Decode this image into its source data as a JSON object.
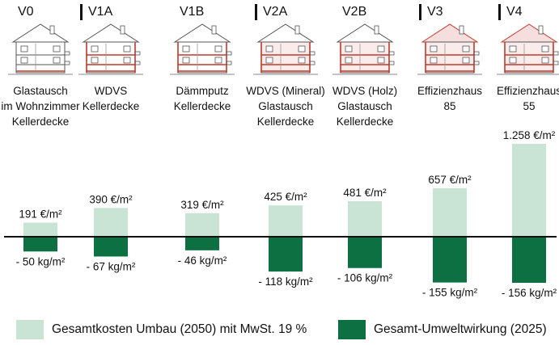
{
  "colors": {
    "cost": "#c9e4d5",
    "impact": "#0d7043",
    "axis": "#111111",
    "house_red": "#c0392b"
  },
  "variants": [
    {
      "code": "V0",
      "separator": false,
      "desc": [
        "Glastausch",
        "im Wohnzimmer",
        "Kellerdecke"
      ],
      "house": "house-icon-v0"
    },
    {
      "code": "V1A",
      "separator": true,
      "desc": [
        "WDVS",
        "Kellerdecke"
      ],
      "house": "house-icon-v1a"
    },
    {
      "code": "V1B",
      "separator": false,
      "desc": [
        "Dämmputz",
        "Kellerdecke"
      ],
      "house": "house-icon-v1b"
    },
    {
      "code": "V2A",
      "separator": true,
      "desc": [
        "WDVS (Mineral)",
        "Glastausch",
        "Kellerdecke"
      ],
      "house": "house-icon-v2a"
    },
    {
      "code": "V2B",
      "separator": false,
      "desc": [
        "WDVS (Holz)",
        "Glastausch",
        "Kellerdecke"
      ],
      "house": "house-icon-v2b"
    },
    {
      "code": "V3",
      "separator": true,
      "desc": [
        "Effizienzhaus",
        "85"
      ],
      "house": "house-icon-v3"
    },
    {
      "code": "V4",
      "separator": true,
      "desc": [
        "Effizienzhaus",
        "55"
      ],
      "house": "house-icon-v4"
    }
  ],
  "chart_data": {
    "type": "bar",
    "categories": [
      "V0",
      "V1A",
      "V1B",
      "V2A",
      "V2B",
      "V3",
      "V4"
    ],
    "series": [
      {
        "name": "Gesamtkosten Umbau (2050) mit MwSt. 19 %",
        "unit": "€/m²",
        "values": [
          191,
          390,
          319,
          425,
          481,
          657,
          1258
        ],
        "labels": [
          "191 €/m²",
          "390 €/m²",
          "319 €/m²",
          "425 €/m²",
          "481 €/m²",
          "657 €/m²",
          "1.258 €/m²"
        ]
      },
      {
        "name": "Gesamt-Umweltwirkung (2025)",
        "unit": "kg/m²",
        "values": [
          -50,
          -67,
          -46,
          -118,
          -106,
          -155,
          -156
        ],
        "labels": [
          "- 50 kg/m²",
          "- 67 kg/m²",
          "- 46 kg/m²",
          "- 118 kg/m²",
          "- 106 kg/m²",
          "- 155 kg/m²",
          "- 156 kg/m²"
        ]
      }
    ],
    "legend_placement": "bottom",
    "grid": false
  },
  "legend": {
    "cost": "Gesamtkosten Umbau (2050) mit MwSt. 19 %",
    "impact": "Gesamt-Umweltwirkung (2025)"
  }
}
